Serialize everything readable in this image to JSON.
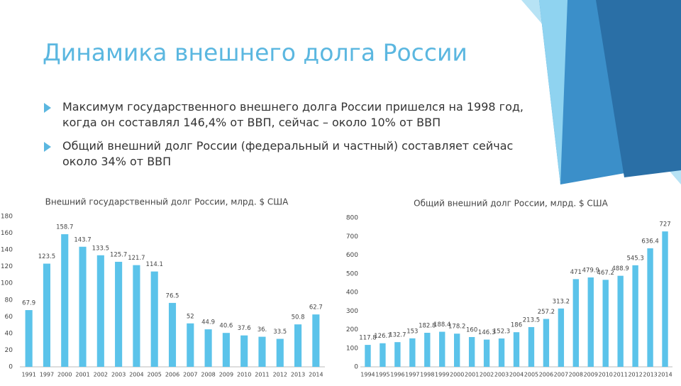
{
  "title": "Динамика внешнего долга России",
  "bullets": [
    "Максимум государственного внешнего долга России пришелся на 1998 год, когда он составлял 146,4% от ВВП, сейчас – около 10% от ВВП",
    "Общий внешний долг России (федеральный и частный) составляет сейчас около 34% от ВВП"
  ],
  "chart_data": [
    {
      "type": "bar",
      "title": "Внешний государственный долг России, млрд. $ США",
      "categories": [
        "1991",
        "1997",
        "2000",
        "2001",
        "2002",
        "2003",
        "2004",
        "2005",
        "2006",
        "2007",
        "2008",
        "2009",
        "2010",
        "2011",
        "2012",
        "2013",
        "2014"
      ],
      "values": [
        67.9,
        123.5,
        158.7,
        143.7,
        133.5,
        125.7,
        121.7,
        114.1,
        76.5,
        52,
        44.9,
        40.6,
        37.6,
        36,
        33.5,
        50.8,
        62.7
      ],
      "value_labels": [
        "67.9",
        "123.5",
        "158.7",
        "143.7",
        "133.5",
        "125.7",
        "121.7",
        "114.1",
        "76.5",
        "52",
        "44.9",
        "40.6",
        "37.6",
        "36.",
        "33.5",
        "50.8",
        "62.7"
      ],
      "color": "#5bc3ea",
      "ylim": [
        0,
        180
      ],
      "yticks": [
        0,
        20,
        40,
        60,
        80,
        100,
        120,
        140,
        160,
        180
      ],
      "grid": false
    },
    {
      "type": "bar",
      "title": "Общий внешний долг России, млрд. $ США",
      "categories": [
        "1994",
        "1995",
        "1996",
        "1997",
        "1998",
        "1999",
        "2000",
        "2001",
        "2002",
        "2003",
        "2004",
        "2005",
        "2006",
        "2007",
        "2008",
        "2009",
        "2010",
        "2011",
        "2012",
        "2013",
        "2014"
      ],
      "values": [
        117.8,
        126.7,
        132.7,
        153,
        182.8,
        188.4,
        178.2,
        160,
        146.3,
        152.3,
        186,
        213.5,
        257.2,
        313.2,
        471,
        479.9,
        467.2,
        488.9,
        545.3,
        636.4,
        727
      ],
      "color": "#5bc3ea",
      "ylim": [
        0,
        800
      ],
      "yticks": [
        0,
        100,
        200,
        300,
        400,
        500,
        600,
        700,
        800
      ],
      "grid": false
    }
  ]
}
